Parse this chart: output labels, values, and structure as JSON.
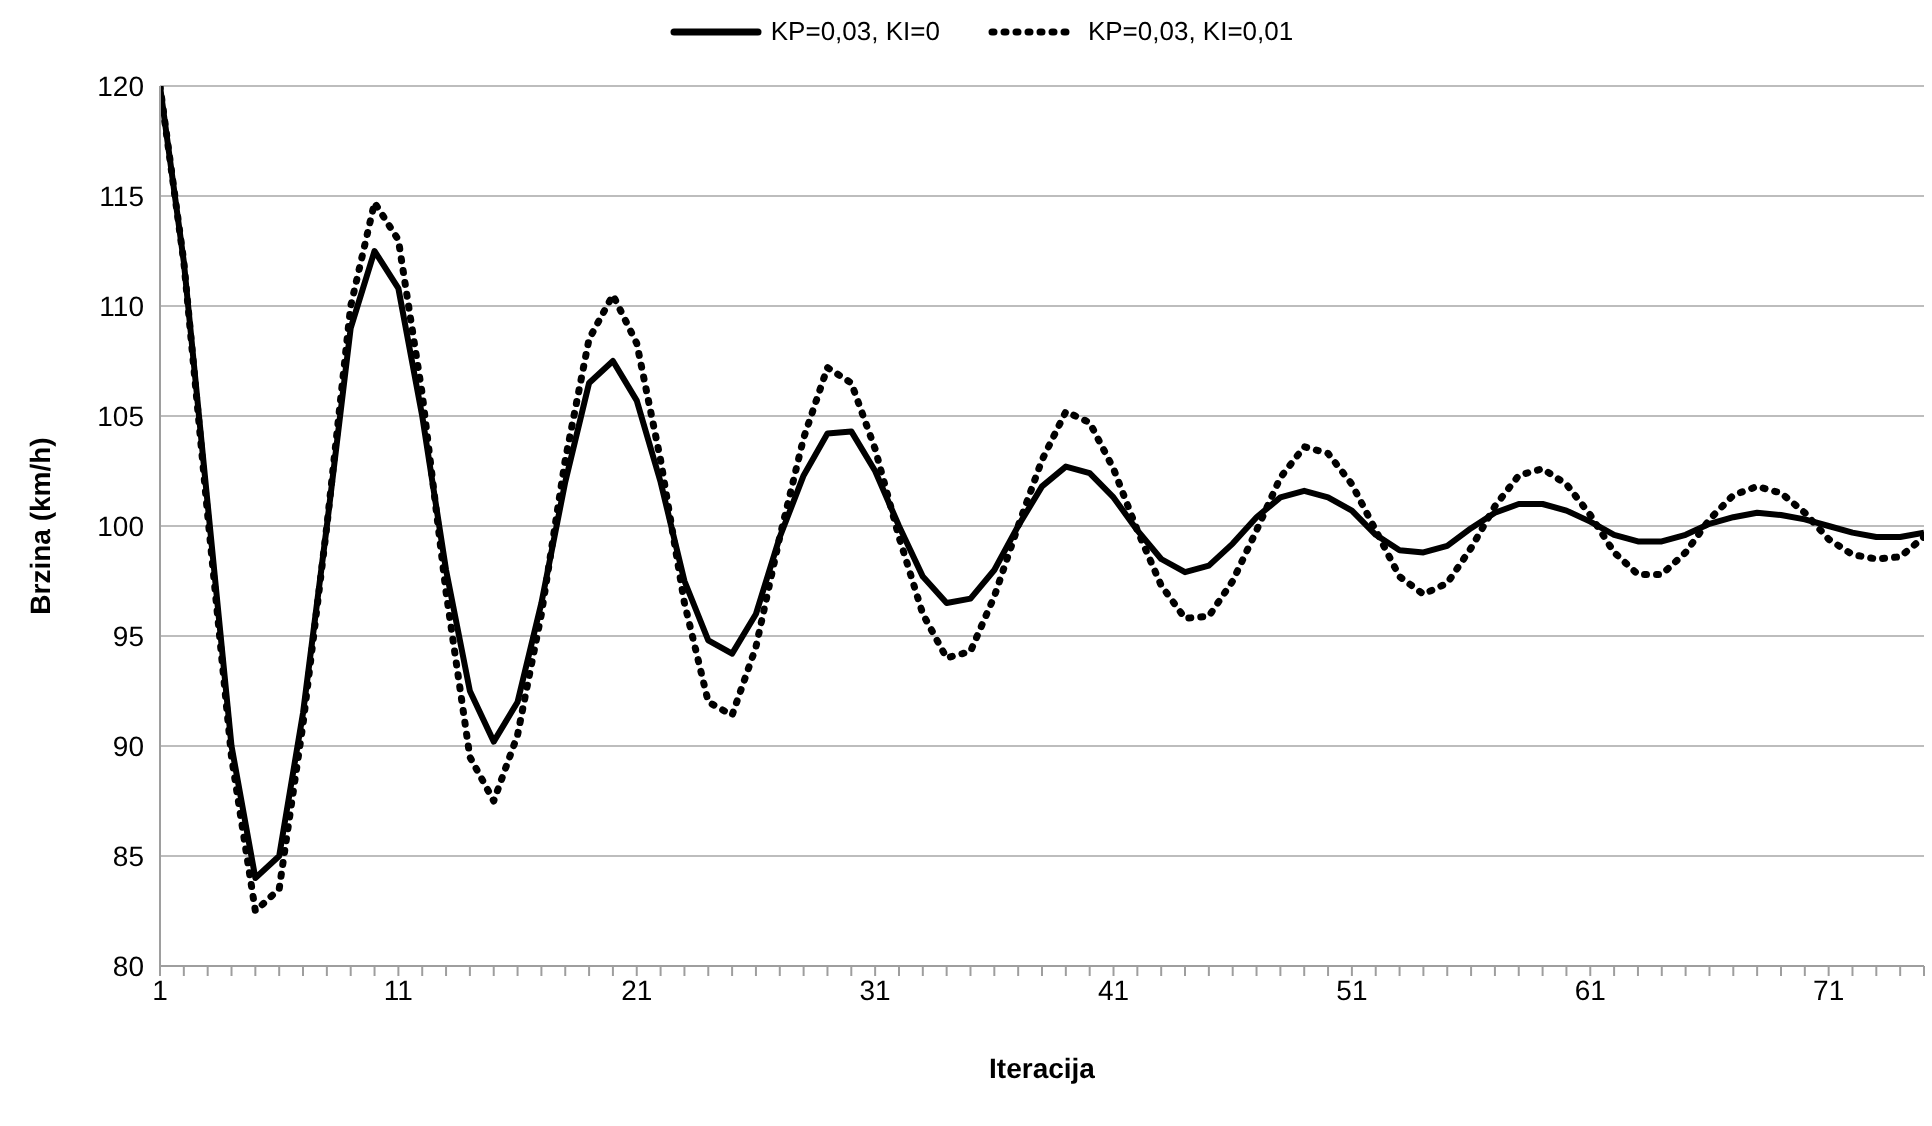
{
  "chart_data": {
    "type": "line",
    "xlabel": "Iteracija",
    "ylabel": "Brzina (km/h)",
    "x": [
      1,
      2,
      3,
      4,
      5,
      6,
      7,
      8,
      9,
      10,
      11,
      12,
      13,
      14,
      15,
      16,
      17,
      18,
      19,
      20,
      21,
      22,
      23,
      24,
      25,
      26,
      27,
      28,
      29,
      30,
      31,
      32,
      33,
      34,
      35,
      36,
      37,
      38,
      39,
      40,
      41,
      42,
      43,
      44,
      45,
      46,
      47,
      48,
      49,
      50,
      51,
      52,
      53,
      54,
      55,
      56,
      57,
      58,
      59,
      60,
      61,
      62,
      63,
      64,
      65,
      66,
      67,
      68,
      69,
      70,
      71,
      72,
      73,
      74,
      75
    ],
    "series": [
      {
        "name": "KP=0,03, KI=0",
        "color": "#000000",
        "line_style": "solid",
        "values": [
          120,
          112,
          101,
          90,
          84,
          85,
          91.5,
          100,
          109,
          112.5,
          110.8,
          105,
          98,
          92.5,
          90.2,
          92,
          96.5,
          102,
          106.5,
          107.5,
          105.7,
          102,
          97.5,
          94.8,
          94.2,
          96,
          99.5,
          102.3,
          104.2,
          104.3,
          102.5,
          100,
          97.7,
          96.5,
          96.7,
          98,
          100,
          101.8,
          102.7,
          102.4,
          101.3,
          99.8,
          98.5,
          97.9,
          98.2,
          99.2,
          100.4,
          101.3,
          101.6,
          101.3,
          100.7,
          99.6,
          98.9,
          98.8,
          99.1,
          99.9,
          100.6,
          101,
          101,
          100.7,
          100.2,
          99.6,
          99.3,
          99.3,
          99.6,
          100.1,
          100.4,
          100.6,
          100.5,
          100.3,
          100,
          99.7,
          99.5,
          99.5,
          99.7
        ]
      },
      {
        "name": "KP=0,03, KI=0,01",
        "color": "#000000",
        "line_style": "dotted",
        "values": [
          120,
          112,
          100.5,
          89.5,
          82.5,
          83.5,
          91,
          100,
          110,
          114.7,
          113,
          106,
          97,
          89.5,
          87.5,
          90.5,
          96,
          103,
          108.5,
          110.5,
          108.3,
          103,
          96.5,
          92,
          91.4,
          94.5,
          99.5,
          104,
          107.2,
          106.5,
          103.5,
          99.5,
          96,
          94,
          94.3,
          96.8,
          100,
          103,
          105.2,
          104.7,
          102.6,
          99.8,
          97.3,
          95.8,
          95.9,
          97.5,
          99.8,
          102.2,
          103.6,
          103.3,
          101.9,
          99.8,
          97.7,
          96.9,
          97.4,
          99,
          100.9,
          102.3,
          102.6,
          101.9,
          100.5,
          98.8,
          97.8,
          97.8,
          98.8,
          100.3,
          101.4,
          101.8,
          101.5,
          100.6,
          99.4,
          98.7,
          98.5,
          98.6,
          99.5
        ]
      }
    ],
    "xlim": [
      1,
      75
    ],
    "xticks": [
      1,
      {
        "value": 2,
        "label": null
      },
      {
        "value": 3,
        "label": null
      },
      {
        "value": 4,
        "label": null
      },
      {
        "value": 5,
        "label": null
      },
      {
        "value": 6,
        "label": null
      },
      {
        "value": 7,
        "label": null
      },
      {
        "value": 8,
        "label": null
      },
      {
        "value": 9,
        "label": null
      },
      {
        "value": 10,
        "label": null
      },
      11,
      {
        "value": 12,
        "label": null
      },
      {
        "value": 13,
        "label": null
      },
      {
        "value": 14,
        "label": null
      },
      {
        "value": 15,
        "label": null
      },
      {
        "value": 16,
        "label": null
      },
      {
        "value": 17,
        "label": null
      },
      {
        "value": 18,
        "label": null
      },
      {
        "value": 19,
        "label": null
      },
      {
        "value": 20,
        "label": null
      },
      21,
      {
        "value": 22,
        "label": null
      },
      {
        "value": 23,
        "label": null
      },
      {
        "value": 24,
        "label": null
      },
      {
        "value": 25,
        "label": null
      },
      {
        "value": 26,
        "label": null
      },
      {
        "value": 27,
        "label": null
      },
      {
        "value": 28,
        "label": null
      },
      {
        "value": 29,
        "label": null
      },
      {
        "value": 30,
        "label": null
      },
      31,
      {
        "value": 32,
        "label": null
      },
      {
        "value": 33,
        "label": null
      },
      {
        "value": 34,
        "label": null
      },
      {
        "value": 35,
        "label": null
      },
      {
        "value": 36,
        "label": null
      },
      {
        "value": 37,
        "label": null
      },
      {
        "value": 38,
        "label": null
      },
      {
        "value": 39,
        "label": null
      },
      {
        "value": 40,
        "label": null
      },
      41,
      {
        "value": 42,
        "label": null
      },
      {
        "value": 43,
        "label": null
      },
      {
        "value": 44,
        "label": null
      },
      {
        "value": 45,
        "label": null
      },
      {
        "value": 46,
        "label": null
      },
      {
        "value": 47,
        "label": null
      },
      {
        "value": 48,
        "label": null
      },
      {
        "value": 49,
        "label": null
      },
      {
        "value": 50,
        "label": null
      },
      51,
      {
        "value": 52,
        "label": null
      },
      {
        "value": 53,
        "label": null
      },
      {
        "value": 54,
        "label": null
      },
      {
        "value": 55,
        "label": null
      },
      {
        "value": 56,
        "label": null
      },
      {
        "value": 57,
        "label": null
      },
      {
        "value": 58,
        "label": null
      },
      {
        "value": 59,
        "label": null
      },
      {
        "value": 60,
        "label": null
      },
      61,
      {
        "value": 62,
        "label": null
      },
      {
        "value": 63,
        "label": null
      },
      {
        "value": 64,
        "label": null
      },
      {
        "value": 65,
        "label": null
      },
      {
        "value": 66,
        "label": null
      },
      {
        "value": 67,
        "label": null
      },
      {
        "value": 68,
        "label": null
      },
      {
        "value": 69,
        "label": null
      },
      {
        "value": 70,
        "label": null
      },
      71,
      {
        "value": 72,
        "label": null
      },
      {
        "value": 73,
        "label": null
      },
      {
        "value": 74,
        "label": null
      },
      {
        "value": 75,
        "label": null
      }
    ],
    "ylim": [
      80,
      120
    ],
    "yticks": [
      80,
      85,
      90,
      95,
      100,
      105,
      110,
      115,
      120
    ],
    "grid": "y",
    "legend": "top",
    "marker": "none"
  }
}
